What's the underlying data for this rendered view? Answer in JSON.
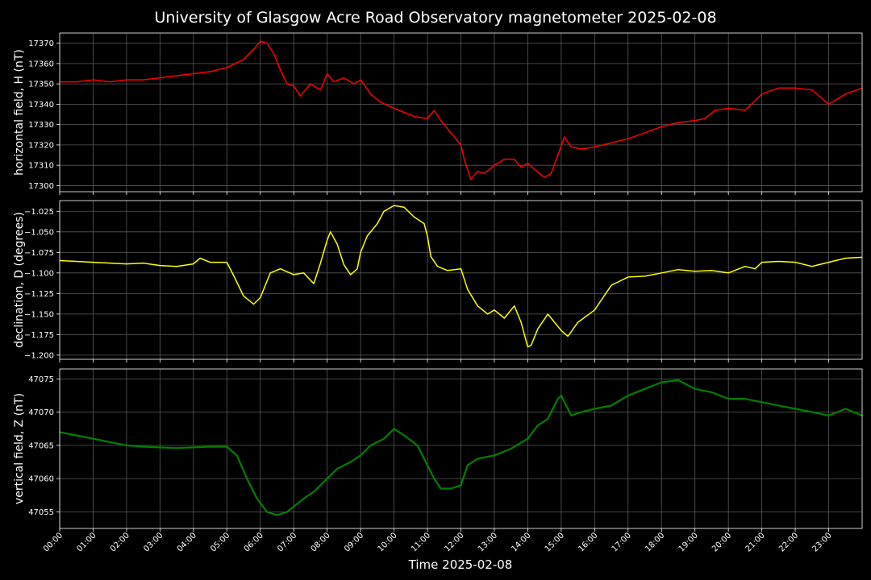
{
  "title": "University of Glasgow Acre Road Observatory magnetometer 2025-02-08",
  "xlabel": "Time 2025-02-08",
  "x_ticks": [
    "00:00",
    "01:00",
    "02:00",
    "03:00",
    "04:00",
    "05:00",
    "06:00",
    "07:00",
    "08:00",
    "09:00",
    "10:00",
    "11:00",
    "12:00",
    "13:00",
    "14:00",
    "15:00",
    "16:00",
    "17:00",
    "18:00",
    "19:00",
    "20:00",
    "21:00",
    "22:00",
    "23:00"
  ],
  "chart_data": [
    {
      "type": "line",
      "ylabel": "horizontal field, H (nT)",
      "color": "#ff0000",
      "xlim": [
        0,
        24
      ],
      "ylim": [
        17297,
        17375
      ],
      "y_ticks": [
        17300,
        17310,
        17320,
        17330,
        17340,
        17350,
        17360,
        17370
      ],
      "x": [
        0,
        0.5,
        1,
        1.5,
        2,
        2.5,
        3,
        3.5,
        4,
        4.5,
        5,
        5.5,
        5.8,
        6.0,
        6.2,
        6.4,
        6.6,
        6.8,
        7.0,
        7.2,
        7.5,
        7.8,
        8.0,
        8.2,
        8.5,
        8.8,
        9.0,
        9.3,
        9.6,
        10.0,
        10.3,
        10.6,
        11.0,
        11.2,
        11.4,
        11.7,
        12.0,
        12.1,
        12.3,
        12.5,
        12.7,
        13.0,
        13.3,
        13.6,
        13.8,
        14.0,
        14.2,
        14.5,
        14.7,
        14.9,
        15.1,
        15.3,
        15.6,
        16.0,
        16.5,
        17.0,
        17.5,
        18.0,
        18.5,
        19.0,
        19.3,
        19.6,
        20.0,
        20.5,
        21.0,
        21.5,
        22.0,
        22.5,
        23.0,
        23.5,
        24.0
      ],
      "values": [
        17351,
        17351,
        17352,
        17351,
        17352,
        17352,
        17353,
        17354,
        17355,
        17356,
        17358,
        17362,
        17367,
        17371,
        17370,
        17365,
        17357,
        17350,
        17349,
        17344,
        17350,
        17347,
        17355,
        17351,
        17353,
        17350,
        17352,
        17345,
        17341,
        17338,
        17336,
        17334,
        17333,
        17337,
        17332,
        17326,
        17320,
        17313,
        17303,
        17307,
        17306,
        17310,
        17313,
        17313,
        17309,
        17311,
        17308,
        17304,
        17306,
        17315,
        17324,
        17319,
        17318,
        17319,
        17321,
        17323,
        17326,
        17329,
        17331,
        17332,
        17333,
        17337,
        17338,
        17337,
        17345,
        17348,
        17348,
        17347,
        17340,
        17345,
        17348
      ]
    },
    {
      "type": "line",
      "ylabel": "declination, D (degrees)",
      "color": "#ffff00",
      "xlim": [
        0,
        24
      ],
      "ylim": [
        -1.205,
        -1.012
      ],
      "y_ticks": [
        -1.2,
        -1.175,
        -1.15,
        -1.125,
        -1.1,
        -1.075,
        -1.05,
        -1.025
      ],
      "x": [
        0,
        0.5,
        1,
        1.5,
        2,
        2.5,
        3,
        3.5,
        4,
        4.2,
        4.5,
        5.0,
        5.2,
        5.5,
        5.8,
        6.0,
        6.3,
        6.6,
        7.0,
        7.3,
        7.6,
        7.8,
        8.0,
        8.1,
        8.3,
        8.5,
        8.7,
        8.9,
        9.0,
        9.2,
        9.5,
        9.7,
        10.0,
        10.3,
        10.6,
        10.9,
        11.0,
        11.1,
        11.3,
        11.6,
        12.0,
        12.2,
        12.5,
        12.8,
        13.0,
        13.3,
        13.6,
        13.8,
        14.0,
        14.1,
        14.3,
        14.6,
        14.8,
        15.0,
        15.2,
        15.5,
        16.0,
        16.5,
        17.0,
        17.5,
        18.0,
        18.5,
        19.0,
        19.5,
        20.0,
        20.5,
        20.8,
        21.0,
        21.5,
        22.0,
        22.5,
        23.0,
        23.5,
        24.0
      ],
      "values": [
        -1.085,
        -1.086,
        -1.087,
        -1.088,
        -1.089,
        -1.088,
        -1.091,
        -1.092,
        -1.089,
        -1.082,
        -1.087,
        -1.087,
        -1.103,
        -1.128,
        -1.138,
        -1.13,
        -1.1,
        -1.095,
        -1.102,
        -1.1,
        -1.113,
        -1.088,
        -1.06,
        -1.05,
        -1.065,
        -1.09,
        -1.102,
        -1.095,
        -1.075,
        -1.055,
        -1.04,
        -1.025,
        -1.018,
        -1.02,
        -1.032,
        -1.04,
        -1.055,
        -1.08,
        -1.092,
        -1.097,
        -1.095,
        -1.12,
        -1.14,
        -1.15,
        -1.145,
        -1.155,
        -1.14,
        -1.16,
        -1.19,
        -1.188,
        -1.168,
        -1.15,
        -1.16,
        -1.17,
        -1.177,
        -1.16,
        -1.145,
        -1.115,
        -1.105,
        -1.104,
        -1.1,
        -1.096,
        -1.098,
        -1.097,
        -1.1,
        -1.092,
        -1.095,
        -1.087,
        -1.086,
        -1.087,
        -1.092,
        -1.087,
        -1.082,
        -1.081
      ]
    },
    {
      "type": "line",
      "ylabel": "vertical field, Z (nT)",
      "color": "#008000",
      "xlim": [
        0,
        24
      ],
      "ylim": [
        47052.5,
        47076.5
      ],
      "y_ticks": [
        47055,
        47060,
        47065,
        47070,
        47075
      ],
      "x": [
        0,
        0.5,
        1,
        1.5,
        2,
        2.5,
        3,
        3.5,
        4,
        4.5,
        5.0,
        5.3,
        5.6,
        5.9,
        6.2,
        6.5,
        6.8,
        7.0,
        7.3,
        7.6,
        8.0,
        8.3,
        8.7,
        9.0,
        9.3,
        9.7,
        10.0,
        10.3,
        10.7,
        11.0,
        11.2,
        11.4,
        11.7,
        12.0,
        12.2,
        12.5,
        13.0,
        13.5,
        14.0,
        14.3,
        14.6,
        14.9,
        15.0,
        15.3,
        15.6,
        16.0,
        16.5,
        17.0,
        17.5,
        18.0,
        18.5,
        19.0,
        19.5,
        20.0,
        20.5,
        21.0,
        21.5,
        22.0,
        22.5,
        23.0,
        23.5,
        24.0
      ],
      "values": [
        47067,
        47066.5,
        47066,
        47065.5,
        47065,
        47064.8,
        47064.7,
        47064.6,
        47064.7,
        47064.8,
        47064.8,
        47063.5,
        47060,
        47057,
        47055,
        47054.5,
        47055,
        47055.8,
        47057,
        47058,
        47060,
        47061.5,
        47062.5,
        47063.5,
        47065,
        47066,
        47067.5,
        47066.5,
        47065,
        47062,
        47060,
        47058.5,
        47058.5,
        47059,
        47062,
        47063,
        47063.5,
        47064.5,
        47066,
        47068,
        47069,
        47072,
        47072.5,
        47069.5,
        47070,
        47070.5,
        47071,
        47072.5,
        47073.5,
        47074.5,
        47074.8,
        47073.5,
        47073,
        47072,
        47072,
        47071.5,
        47071,
        47070.5,
        47070,
        47069.5,
        47070.5,
        47069.5
      ]
    }
  ]
}
